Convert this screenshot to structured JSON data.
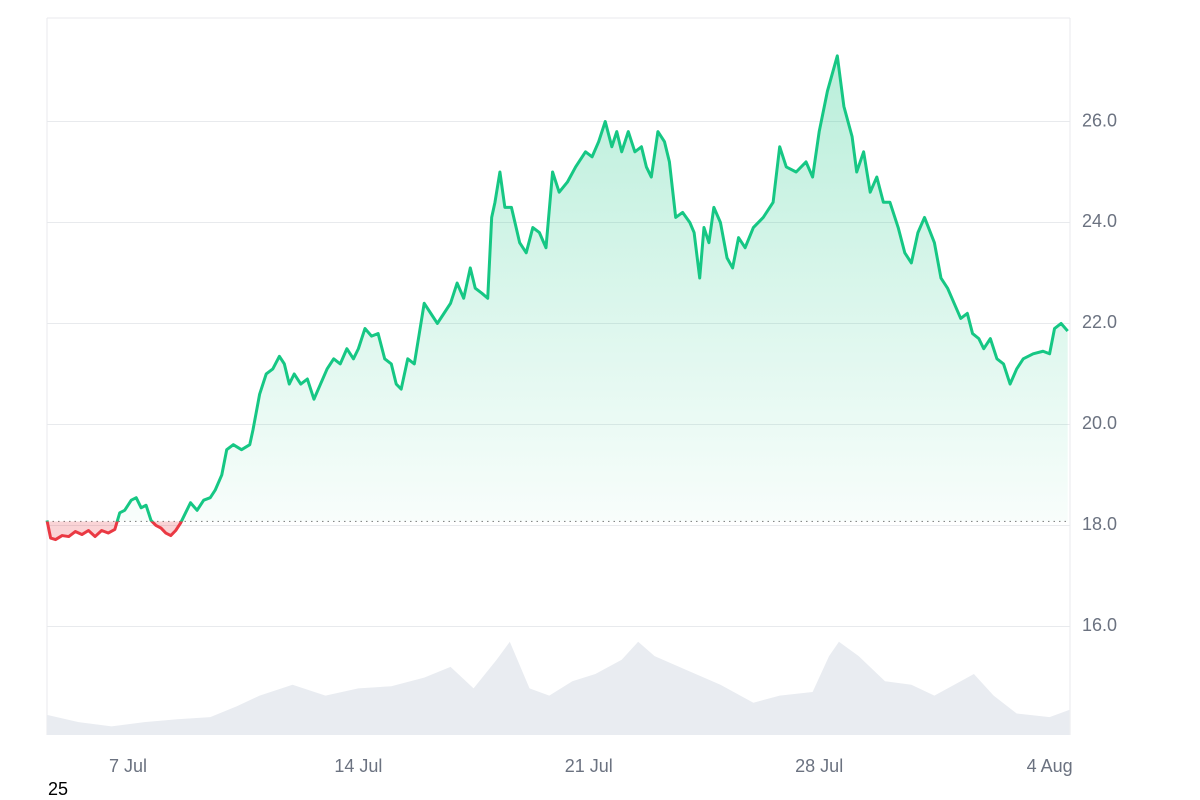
{
  "chart_data": {
    "type": "line",
    "x": [
      4.54,
      4.65,
      4.8,
      5.0,
      5.2,
      5.4,
      5.6,
      5.8,
      6.0,
      6.2,
      6.4,
      6.6,
      6.75,
      6.9,
      7.1,
      7.25,
      7.4,
      7.55,
      7.7,
      7.85,
      8.0,
      8.15,
      8.3,
      8.45,
      8.6,
      8.75,
      8.9,
      9.1,
      9.3,
      9.5,
      9.65,
      9.85,
      10.0,
      10.2,
      10.45,
      10.7,
      10.8,
      11.0,
      11.2,
      11.4,
      11.6,
      11.75,
      11.9,
      12.05,
      12.25,
      12.45,
      12.65,
      12.85,
      13.05,
      13.25,
      13.45,
      13.65,
      13.85,
      14.0,
      14.2,
      14.4,
      14.6,
      14.8,
      15.0,
      15.15,
      15.3,
      15.5,
      15.7,
      15.85,
      16.0,
      16.2,
      16.4,
      16.6,
      16.8,
      17.0,
      17.2,
      17.4,
      17.55,
      17.75,
      17.93,
      18.05,
      18.15,
      18.3,
      18.45,
      18.65,
      18.9,
      19.1,
      19.3,
      19.5,
      19.7,
      19.9,
      20.1,
      20.35,
      20.6,
      20.9,
      21.1,
      21.3,
      21.5,
      21.7,
      21.85,
      22.0,
      22.2,
      22.4,
      22.6,
      22.75,
      22.9,
      23.1,
      23.3,
      23.45,
      23.64,
      23.85,
      24.07,
      24.2,
      24.37,
      24.5,
      24.65,
      24.8,
      25.0,
      25.2,
      25.37,
      25.55,
      25.75,
      26.0,
      26.3,
      26.6,
      26.8,
      27.0,
      27.3,
      27.6,
      27.8,
      28.0,
      28.25,
      28.55,
      28.75,
      29.0,
      29.14,
      29.35,
      29.55,
      29.75,
      29.95,
      30.15,
      30.4,
      30.6,
      30.8,
      31.0,
      31.2,
      31.5,
      31.7,
      31.9,
      32.1,
      32.3,
      32.5,
      32.66,
      32.85,
      33.0,
      33.2,
      33.4,
      33.6,
      33.8,
      34.0,
      34.2,
      34.5,
      34.8,
      35.0,
      35.15,
      35.35,
      35.55
    ],
    "series": [
      {
        "color": "#16c784",
        "negative_color": "#ea3943",
        "values": [
          18.1,
          17.75,
          17.72,
          17.8,
          17.78,
          17.88,
          17.82,
          17.9,
          17.78,
          17.9,
          17.85,
          17.92,
          18.25,
          18.3,
          18.5,
          18.55,
          18.35,
          18.4,
          18.1,
          18.0,
          17.95,
          17.85,
          17.8,
          17.9,
          18.05,
          18.25,
          18.45,
          18.3,
          18.5,
          18.55,
          18.7,
          19.0,
          19.5,
          19.6,
          19.5,
          19.6,
          19.9,
          20.6,
          21.0,
          21.1,
          21.35,
          21.2,
          20.8,
          21.0,
          20.8,
          20.9,
          20.5,
          20.8,
          21.1,
          21.3,
          21.2,
          21.5,
          21.3,
          21.5,
          21.9,
          21.75,
          21.8,
          21.3,
          21.2,
          20.8,
          20.7,
          21.3,
          21.2,
          21.8,
          22.4,
          22.2,
          22.0,
          22.2,
          22.4,
          22.8,
          22.5,
          23.1,
          22.7,
          22.6,
          22.5,
          24.1,
          24.4,
          25.0,
          24.3,
          24.3,
          23.6,
          23.4,
          23.9,
          23.8,
          23.5,
          25.0,
          24.6,
          24.8,
          25.1,
          25.4,
          25.3,
          25.6,
          26.0,
          25.5,
          25.8,
          25.4,
          25.8,
          25.4,
          25.5,
          25.1,
          24.9,
          25.8,
          25.6,
          25.2,
          24.1,
          24.2,
          24.0,
          23.8,
          22.9,
          23.9,
          23.6,
          24.3,
          24.0,
          23.3,
          23.1,
          23.7,
          23.5,
          23.9,
          24.1,
          24.4,
          25.5,
          25.1,
          25.0,
          25.2,
          24.9,
          25.8,
          26.6,
          27.3,
          26.3,
          25.7,
          25.0,
          25.4,
          24.6,
          24.9,
          24.4,
          24.4,
          23.9,
          23.4,
          23.2,
          23.8,
          24.1,
          23.6,
          22.9,
          22.7,
          22.4,
          22.1,
          22.2,
          21.8,
          21.7,
          21.5,
          21.7,
          21.3,
          21.2,
          20.8,
          21.1,
          21.3,
          21.4,
          21.45,
          21.4,
          21.9,
          22.0,
          21.85
        ]
      }
    ],
    "baseline": 18.08,
    "volume": {
      "axis": "y2",
      "color": "#e9ecf1",
      "x": [
        4.54,
        5.5,
        6.5,
        7.5,
        8.5,
        9.5,
        10.3,
        11,
        12,
        13,
        14,
        15,
        16,
        16.8,
        17.5,
        18.2,
        18.6,
        19.2,
        19.8,
        20.5,
        21.2,
        22,
        22.5,
        23,
        24,
        25,
        26,
        26.8,
        27.8,
        28.3,
        28.6,
        29.2,
        30,
        30.8,
        31.5,
        32.3,
        32.7,
        33.3,
        34,
        35,
        35.6
      ],
      "values": [
        2.8,
        1.8,
        1.2,
        1.8,
        2.2,
        2.5,
        4,
        5.5,
        7,
        5.5,
        6.5,
        6.8,
        8,
        9.5,
        6.5,
        10.5,
        13,
        6.5,
        5.5,
        7.5,
        8.5,
        10.5,
        13,
        11,
        9,
        7,
        4.5,
        5.5,
        6,
        11,
        13,
        11,
        7.5,
        7,
        5.5,
        7.5,
        8.5,
        5.5,
        3,
        2.5,
        3.5
      ]
    },
    "xlim": [
      4.54,
      35.62
    ],
    "xticks": [
      {
        "value": 7,
        "label": "7 Jul"
      },
      {
        "value": 14,
        "label": "14 Jul"
      },
      {
        "value": 21,
        "label": "21 Jul"
      },
      {
        "value": 28,
        "label": "28 Jul"
      },
      {
        "value": 35,
        "label": "4 Aug"
      }
    ],
    "ylim": [
      13.85,
      28.05
    ],
    "yticks": [
      {
        "value": 16,
        "label": "16.0"
      },
      {
        "value": 18,
        "label": "18.0"
      },
      {
        "value": 20,
        "label": "20.0"
      },
      {
        "value": 22,
        "label": "22.0"
      },
      {
        "value": 24,
        "label": "24.0"
      },
      {
        "value": 26,
        "label": "26.0"
      }
    ],
    "y2lim": [
      0,
      100
    ],
    "grid": true,
    "annotation": "25"
  }
}
